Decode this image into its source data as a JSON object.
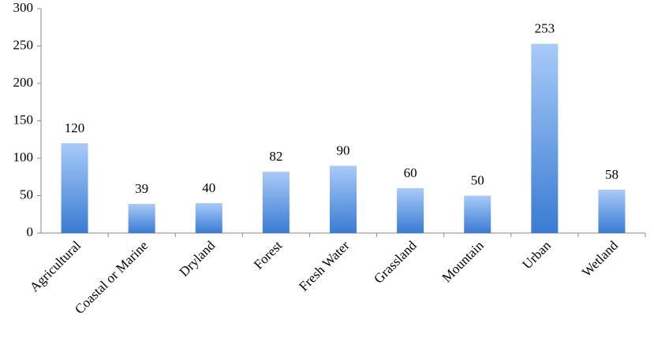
{
  "chart_data": {
    "type": "bar",
    "categories": [
      "Agricultural",
      "Coastal or Marine",
      "Dryland",
      "Forest",
      "Fresh Water",
      "Grassland",
      "Mountain",
      "Urban",
      "Wetland"
    ],
    "values": [
      120,
      39,
      40,
      82,
      90,
      60,
      50,
      253,
      58
    ],
    "color": [
      "#a8cbf8",
      "#3a7bd3"
    ],
    "data_labels": true,
    "ylim": [
      0,
      300
    ],
    "yticks": [
      0,
      50,
      100,
      150,
      200,
      250,
      300
    ],
    "grid": false
  }
}
